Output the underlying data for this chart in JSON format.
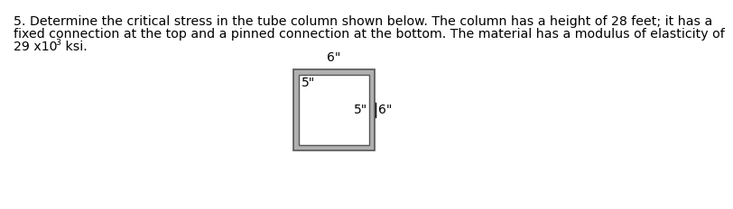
{
  "text_line1": "5. Determine the critical stress in the tube column shown below. The column has a height of 28 feet; it has a",
  "text_line2": "fixed connection at the top and a pinned connection at the bottom. The material has a modulus of elasticity of",
  "text_line3_main": "29 x10",
  "text_superscript": "3",
  "text_line3_end": " ksi.",
  "label_top_outer": "6\"",
  "label_top_inner": "5\"",
  "label_right_inner": "5\"",
  "label_right_outer": "6\"",
  "bg_color": "#ffffff",
  "outer_gray": "#b0b0b0",
  "inner_white": "#ffffff",
  "edge_color": "#555555",
  "text_color": "#000000",
  "font_size_body": 10.2,
  "font_size_label": 10.0
}
